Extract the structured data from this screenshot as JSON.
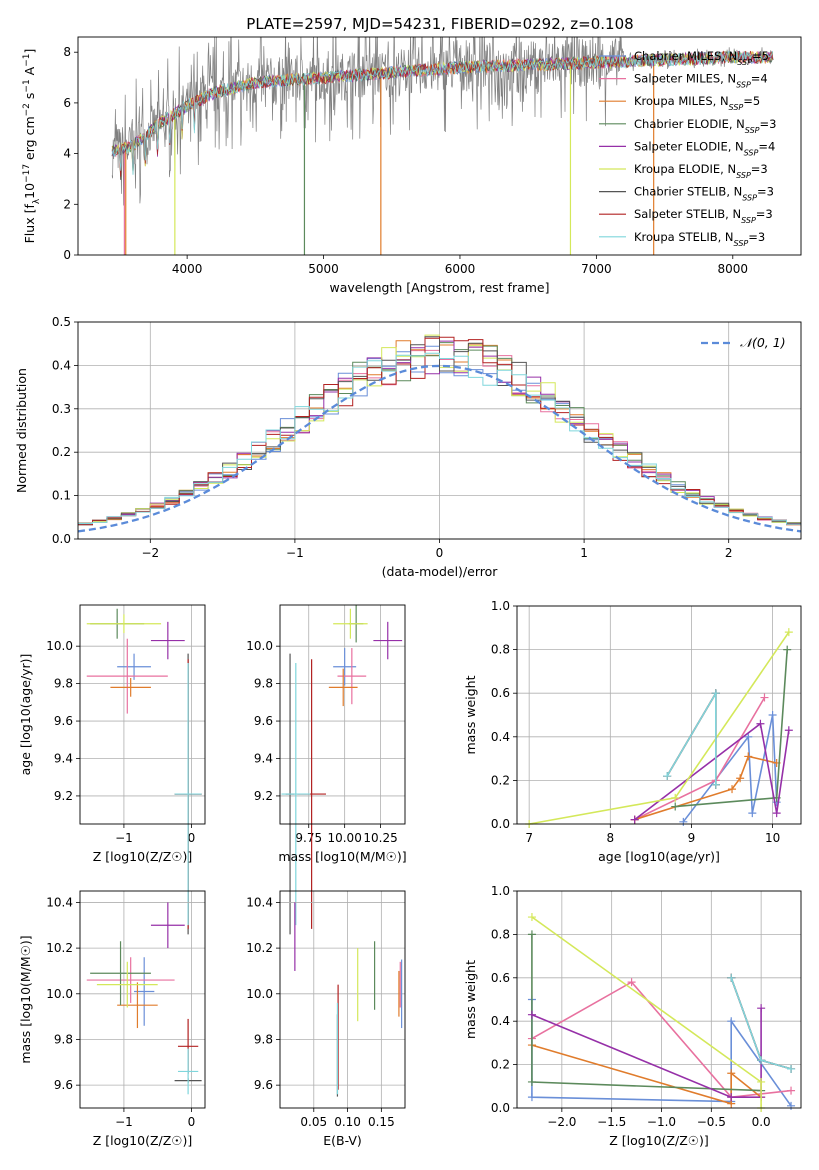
{
  "title": "PLATE=2597, MJD=54231, FIBERID=0292, z=0.108",
  "colors": {
    "chabrier_miles": "#6a8fd8",
    "salpeter_miles": "#e8719f",
    "kroupa_miles": "#e07c2c",
    "chabrier_elodie": "#5c8a5c",
    "salpeter_elodie": "#9630a8",
    "kroupa_elodie": "#d4e85a",
    "chabrier_stelib": "#555555",
    "salpeter_stelib": "#b22222",
    "kroupa_stelib": "#7fd6dc",
    "normal_curve": "#5b8bd9",
    "grid": "#b0b0b0",
    "data": "#808080"
  },
  "chart_data": [
    {
      "id": "spectrum",
      "type": "line",
      "xlabel": "wavelength [Angstrom, rest frame]",
      "ylabel": "Flux [f_λ 10^-17 erg cm^-2 s^-1 A^-1]",
      "xlim": [
        3200,
        8500
      ],
      "ylim": [
        0,
        8.6
      ],
      "xticks": [
        4000,
        5000,
        6000,
        7000,
        8000
      ],
      "yticks": [
        0,
        2,
        4,
        6,
        8
      ],
      "grid": false,
      "legend_position": "top-right",
      "legend": [
        {
          "name": "Chabrier MILES, N_SSP=5",
          "key": "chabrier_miles"
        },
        {
          "name": "Salpeter MILES, N_SSP=4",
          "key": "salpeter_miles"
        },
        {
          "name": "Kroupa MILES, N_SSP=5",
          "key": "kroupa_miles"
        },
        {
          "name": "Chabrier ELODIE, N_SSP=3",
          "key": "chabrier_elodie"
        },
        {
          "name": "Salpeter ELODIE, N_SSP=4",
          "key": "salpeter_elodie"
        },
        {
          "name": "Kroupa ELODIE, N_SSP=3",
          "key": "kroupa_elodie"
        },
        {
          "name": "Chabrier STELIB, N_SSP=3",
          "key": "chabrier_stelib"
        },
        {
          "name": "Salpeter STELIB, N_SSP=3",
          "key": "salpeter_stelib"
        },
        {
          "name": "Kroupa STELIB, N_SSP=3",
          "key": "kroupa_stelib"
        }
      ],
      "continuum": [
        [
          3450,
          4.1
        ],
        [
          3600,
          4.3
        ],
        [
          3800,
          5.2
        ],
        [
          4000,
          5.9
        ],
        [
          4200,
          6.4
        ],
        [
          4500,
          6.8
        ],
        [
          5000,
          7.0
        ],
        [
          5500,
          7.2
        ],
        [
          6000,
          7.4
        ],
        [
          6500,
          7.5
        ],
        [
          7000,
          7.6
        ],
        [
          7500,
          7.7
        ],
        [
          8000,
          7.8
        ],
        [
          8300,
          7.8
        ]
      ]
    },
    {
      "id": "residuals",
      "type": "histogram",
      "xlabel": "(data-model)/error",
      "ylabel": "Normed distribution",
      "xlim": [
        -2.5,
        2.5
      ],
      "ylim": [
        0,
        0.5
      ],
      "xticks": [
        -2,
        -1,
        0,
        1,
        2
      ],
      "yticks": [
        0.0,
        0.1,
        0.2,
        0.3,
        0.4,
        0.5
      ],
      "grid": true,
      "legend": "N(0,1)",
      "legend_position": "top-right",
      "bin_width": 0.1
    },
    {
      "id": "age_vs_Z",
      "type": "errorbar",
      "xlabel": "Z [log10(Z/Z☉)]",
      "ylabel": "age [log10(age/yr)]",
      "xlim": [
        -1.65,
        0.2
      ],
      "ylim": [
        9.05,
        10.22
      ],
      "xticks": [
        -1,
        0
      ],
      "yticks": [
        9.2,
        9.4,
        9.6,
        9.8,
        10.0
      ],
      "grid": true,
      "points": [
        {
          "key": "chabrier_miles",
          "x": -0.85,
          "y": 9.89,
          "xerr": 0.25,
          "yerr": 0.07
        },
        {
          "key": "salpeter_miles",
          "x": -0.95,
          "y": 9.84,
          "xerr": 0.6,
          "yerr": 0.2
        },
        {
          "key": "kroupa_miles",
          "x": -0.9,
          "y": 9.78,
          "xerr": 0.3,
          "yerr": 0.05
        },
        {
          "key": "chabrier_elodie",
          "x": -1.1,
          "y": 10.12,
          "xerr": 0.4,
          "yerr": 0.08
        },
        {
          "key": "salpeter_elodie",
          "x": -0.35,
          "y": 10.03,
          "xerr": 0.25,
          "yerr": 0.1
        },
        {
          "key": "kroupa_elodie",
          "x": -1.0,
          "y": 10.12,
          "xerr": 0.55,
          "yerr": 0.05
        },
        {
          "key": "chabrier_stelib",
          "x": -0.05,
          "y": 9.21,
          "xerr": 0.2,
          "yerr": 0.75
        },
        {
          "key": "salpeter_stelib",
          "x": -0.05,
          "y": 9.21,
          "xerr": 0.2,
          "yerr": 0.72
        },
        {
          "key": "kroupa_stelib",
          "x": -0.05,
          "y": 9.21,
          "xerr": 0.2,
          "yerr": 0.7
        }
      ]
    },
    {
      "id": "age_vs_mass",
      "type": "errorbar",
      "xlabel": "mass [log10(M/M☉)]",
      "ylabel": "",
      "xlim": [
        9.55,
        10.42
      ],
      "ylim": [
        9.05,
        10.22
      ],
      "xticks": [
        9.75,
        10.0,
        10.25
      ],
      "xticklabels": [
        "9.75",
        "10.00",
        "10.25"
      ],
      "yticks": [
        9.2,
        9.4,
        9.6,
        9.8,
        10.0
      ],
      "grid": true,
      "points": [
        {
          "key": "chabrier_miles",
          "x": 10.0,
          "y": 9.89,
          "xerr": 0.08,
          "yerr": 0.1
        },
        {
          "key": "salpeter_miles",
          "x": 10.05,
          "y": 9.84,
          "xerr": 0.1,
          "yerr": 0.15
        },
        {
          "key": "kroupa_miles",
          "x": 9.99,
          "y": 9.78,
          "xerr": 0.1,
          "yerr": 0.1
        },
        {
          "key": "chabrier_elodie",
          "x": 10.08,
          "y": 10.12,
          "xerr": 0.05,
          "yerr": 0.1
        },
        {
          "key": "salpeter_elodie",
          "x": 10.3,
          "y": 10.03,
          "xerr": 0.1,
          "yerr": 0.1
        },
        {
          "key": "kroupa_elodie",
          "x": 10.04,
          "y": 10.12,
          "xerr": 0.12,
          "yerr": 0.08
        },
        {
          "key": "chabrier_stelib",
          "x": 9.62,
          "y": 9.21,
          "xerr": 0.03,
          "yerr": 0.75
        },
        {
          "key": "salpeter_stelib",
          "x": 9.77,
          "y": 9.21,
          "xerr": 0.1,
          "yerr": 0.72
        },
        {
          "key": "kroupa_stelib",
          "x": 9.66,
          "y": 9.21,
          "xerr": 0.1,
          "yerr": 0.7
        }
      ]
    },
    {
      "id": "mass_weight_vs_age",
      "type": "line",
      "xlabel": "age [log10(age/yr)]",
      "ylabel": "mass weight",
      "xlim": [
        6.85,
        10.35
      ],
      "ylim": [
        0,
        1.0
      ],
      "xticks": [
        7,
        8,
        9,
        10
      ],
      "yticks": [
        0.0,
        0.2,
        0.4,
        0.6,
        0.8,
        1.0
      ],
      "grid": true,
      "series": [
        {
          "key": "chabrier_miles",
          "x": [
            8.9,
            9.7,
            9.75,
            10.0,
            10.05
          ],
          "y": [
            0.01,
            0.4,
            0.05,
            0.5,
            0.1
          ]
        },
        {
          "key": "salpeter_miles",
          "x": [
            8.3,
            9.3,
            9.9
          ],
          "y": [
            0.02,
            0.2,
            0.58
          ]
        },
        {
          "key": "kroupa_miles",
          "x": [
            8.3,
            9.5,
            9.6,
            9.7,
            10.05
          ],
          "y": [
            0.02,
            0.16,
            0.21,
            0.31,
            0.28
          ]
        },
        {
          "key": "chabrier_elodie",
          "x": [
            8.8,
            10.05,
            10.18
          ],
          "y": [
            0.08,
            0.12,
            0.8
          ]
        },
        {
          "key": "salpeter_elodie",
          "x": [
            8.3,
            9.85,
            10.05,
            10.2
          ],
          "y": [
            0.02,
            0.46,
            0.05,
            0.43
          ]
        },
        {
          "key": "kroupa_elodie",
          "x": [
            7.0,
            8.8,
            10.2
          ],
          "y": [
            0.0,
            0.12,
            0.88
          ]
        },
        {
          "key": "chabrier_stelib",
          "x": [
            8.7,
            9.3,
            9.3
          ],
          "y": [
            0.22,
            0.6,
            0.18
          ]
        },
        {
          "key": "salpeter_stelib",
          "x": [
            8.7,
            9.3,
            9.3
          ],
          "y": [
            0.22,
            0.6,
            0.18
          ]
        },
        {
          "key": "kroupa_stelib",
          "x": [
            8.7,
            9.3,
            9.3
          ],
          "y": [
            0.22,
            0.6,
            0.18
          ]
        }
      ]
    },
    {
      "id": "mass_vs_Z",
      "type": "errorbar",
      "xlabel": "Z [log10(Z/Z☉)]",
      "ylabel": "mass [log10(M/M☉)]",
      "xlim": [
        -1.65,
        0.2
      ],
      "ylim": [
        9.5,
        10.45
      ],
      "xticks": [
        -1,
        0
      ],
      "yticks": [
        9.6,
        9.8,
        10.0,
        10.2,
        10.4
      ],
      "grid": true,
      "points": [
        {
          "key": "chabrier_miles",
          "x": -0.7,
          "y": 10.01,
          "xerr": 0.15,
          "yerr": 0.15
        },
        {
          "key": "salpeter_miles",
          "x": -0.9,
          "y": 10.06,
          "xerr": 0.65,
          "yerr": 0.1
        },
        {
          "key": "kroupa_miles",
          "x": -0.8,
          "y": 9.95,
          "xerr": 0.3,
          "yerr": 0.1
        },
        {
          "key": "chabrier_elodie",
          "x": -1.05,
          "y": 10.09,
          "xerr": 0.45,
          "yerr": 0.14
        },
        {
          "key": "salpeter_elodie",
          "x": -0.35,
          "y": 10.3,
          "xerr": 0.25,
          "yerr": 0.1
        },
        {
          "key": "kroupa_elodie",
          "x": -0.95,
          "y": 10.04,
          "xerr": 0.45,
          "yerr": 0.1
        },
        {
          "key": "chabrier_stelib",
          "x": -0.05,
          "y": 9.62,
          "xerr": 0.2,
          "yerr": 0.01
        },
        {
          "key": "salpeter_stelib",
          "x": -0.05,
          "y": 9.77,
          "xerr": 0.15,
          "yerr": 0.12
        },
        {
          "key": "kroupa_stelib",
          "x": -0.05,
          "y": 9.66,
          "xerr": 0.15,
          "yerr": 0.1
        }
      ]
    },
    {
      "id": "mass_vs_ebv",
      "type": "errorbar",
      "xlabel": "E(B-V)",
      "ylabel": "",
      "xlim": [
        0.0,
        0.185
      ],
      "ylim": [
        9.5,
        10.45
      ],
      "xticks": [
        0.05,
        0.1,
        0.15
      ],
      "xticklabels": [
        "0.05",
        "0.10",
        "0.15"
      ],
      "yticks": [
        9.6,
        9.8,
        10.0,
        10.2,
        10.4
      ],
      "grid": true,
      "points": [
        {
          "key": "chabrier_miles",
          "x": 0.18,
          "y": 10.0,
          "xerr": 0.0,
          "yerr": 0.15
        },
        {
          "key": "salpeter_miles",
          "x": 0.178,
          "y": 10.04,
          "xerr": 0.0,
          "yerr": 0.1
        },
        {
          "key": "kroupa_miles",
          "x": 0.176,
          "y": 10.0,
          "xerr": 0.0,
          "yerr": 0.1
        },
        {
          "key": "chabrier_elodie",
          "x": 0.14,
          "y": 10.08,
          "xerr": 0.0,
          "yerr": 0.15
        },
        {
          "key": "salpeter_elodie",
          "x": 0.022,
          "y": 10.25,
          "xerr": 0.0,
          "yerr": 0.15
        },
        {
          "key": "kroupa_elodie",
          "x": 0.115,
          "y": 10.04,
          "xerr": 0.0,
          "yerr": 0.16
        },
        {
          "key": "chabrier_stelib",
          "x": 0.085,
          "y": 9.73,
          "xerr": 0.0,
          "yerr": 0.18
        },
        {
          "key": "salpeter_stelib",
          "x": 0.086,
          "y": 9.81,
          "xerr": 0.0,
          "yerr": 0.23
        },
        {
          "key": "kroupa_stelib",
          "x": 0.085,
          "y": 9.76,
          "xerr": 0.0,
          "yerr": 0.2
        }
      ]
    },
    {
      "id": "mass_weight_vs_Z",
      "type": "line",
      "xlabel": "Z [log10(Z/Z☉)]",
      "ylabel": "mass weight",
      "xlim": [
        -2.45,
        0.4
      ],
      "ylim": [
        0,
        1.0
      ],
      "xticks": [
        -2.0,
        -1.5,
        -1.0,
        -0.5,
        0.0
      ],
      "xticklabels": [
        "−2.0",
        "−1.5",
        "−1.0",
        "−0.5",
        "0.0"
      ],
      "yticks": [
        0.0,
        0.2,
        0.4,
        0.6,
        0.8,
        1.0
      ],
      "grid": true,
      "series": [
        {
          "key": "chabrier_miles",
          "x": [
            -2.3,
            -2.3,
            -0.3,
            -0.3,
            0.3
          ],
          "y": [
            0.5,
            0.05,
            0.03,
            0.4,
            0.01
          ]
        },
        {
          "key": "salpeter_miles",
          "x": [
            -2.3,
            -1.3,
            -0.3,
            0.3
          ],
          "y": [
            0.32,
            0.58,
            0.05,
            0.08
          ]
        },
        {
          "key": "kroupa_miles",
          "x": [
            -2.3,
            -0.3,
            -0.3,
            0.0
          ],
          "y": [
            0.29,
            0.02,
            0.16,
            0.05
          ]
        },
        {
          "key": "chabrier_elodie",
          "x": [
            -2.3,
            -2.3,
            0.0
          ],
          "y": [
            0.8,
            0.12,
            0.08
          ]
        },
        {
          "key": "salpeter_elodie",
          "x": [
            -2.3,
            -0.3,
            0.0,
            0.0
          ],
          "y": [
            0.43,
            0.05,
            0.05,
            0.46
          ]
        },
        {
          "key": "kroupa_elodie",
          "x": [
            -2.3,
            0.0,
            0.0
          ],
          "y": [
            0.88,
            0.12,
            0.0
          ]
        },
        {
          "key": "chabrier_stelib",
          "x": [
            -0.3,
            0.0,
            0.3
          ],
          "y": [
            0.6,
            0.22,
            0.18
          ]
        },
        {
          "key": "salpeter_stelib",
          "x": [
            -0.3,
            0.0,
            0.3
          ],
          "y": [
            0.6,
            0.22,
            0.18
          ]
        },
        {
          "key": "kroupa_stelib",
          "x": [
            -0.3,
            0.0,
            0.3
          ],
          "y": [
            0.6,
            0.22,
            0.18
          ]
        }
      ]
    }
  ]
}
